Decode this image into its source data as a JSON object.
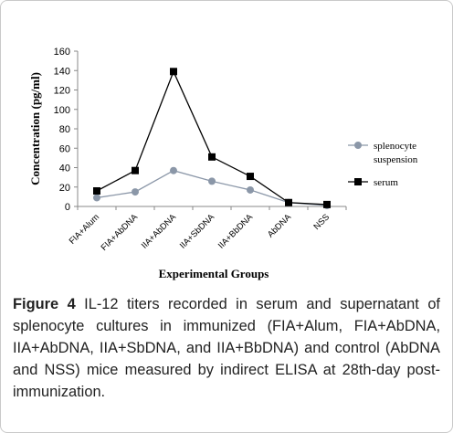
{
  "chart_data": {
    "type": "line",
    "categories": [
      "FIA+Alum",
      "FIA+AbDNA",
      "IIA+AbDNA",
      "IIA+SbDNA",
      "IIA+BbDNA",
      "AbDNA",
      "NSS"
    ],
    "series": [
      {
        "name": "splenocyte suspension",
        "name_lines": [
          "splenocyte",
          "suspension"
        ],
        "values": [
          9,
          15,
          37,
          26,
          17,
          4,
          1
        ],
        "color": "#8b97a8",
        "marker": "circle"
      },
      {
        "name": "serum",
        "name_lines": [
          "serum"
        ],
        "values": [
          16,
          37,
          139,
          51,
          31,
          4,
          2
        ],
        "color": "#000000",
        "marker": "square"
      }
    ],
    "xlabel": "Experimental Groups",
    "ylabel": "Concentration (pg/ml)",
    "ylim": [
      0,
      160
    ],
    "yticks": [
      0,
      20,
      40,
      60,
      80,
      100,
      120,
      140,
      160
    ],
    "grid": false,
    "legend": "right"
  },
  "caption": {
    "label": "Figure 4",
    "text": " IL-12 titers recorded in serum and supernatant of splenocyte cultures in immunized (FIA+Alum, FIA+AbDNA, IIA+AbDNA, IIA+SbDNA, and IIA+BbDNA) and control (AbDNA and NSS) mice measured by indirect ELISA at 28th-day post-immunization."
  }
}
